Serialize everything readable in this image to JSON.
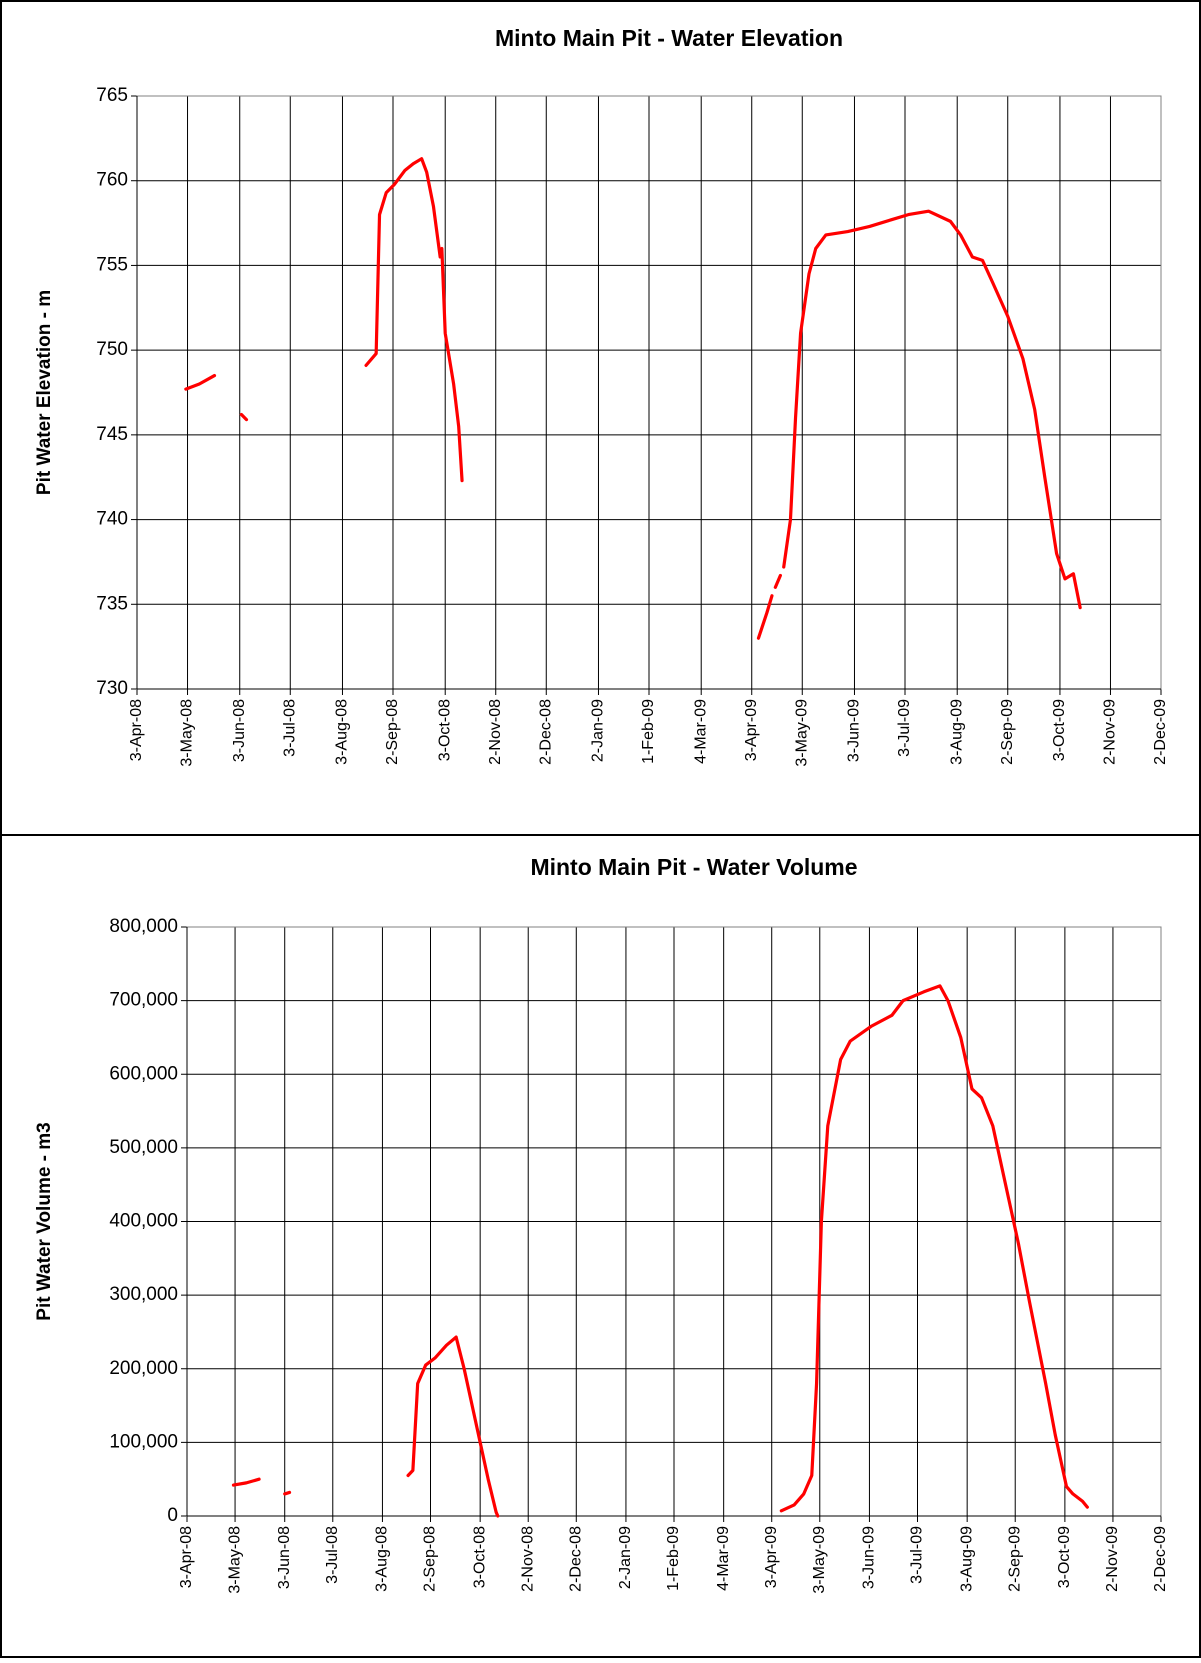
{
  "chart_data": [
    {
      "type": "line",
      "title": "Minto Main Pit - Water Elevation",
      "y_label": "Pit Water Elevation - m",
      "xlim": [
        "2008-04-03",
        "2009-12-02"
      ],
      "xticks": [
        {
          "value": "2008-04-03",
          "label": "3-Apr-08"
        },
        {
          "value": "2008-05-03",
          "label": "3-May-08"
        },
        {
          "value": "2008-06-03",
          "label": "3-Jun-08"
        },
        {
          "value": "2008-07-03",
          "label": "3-Jul-08"
        },
        {
          "value": "2008-08-03",
          "label": "3-Aug-08"
        },
        {
          "value": "2008-09-02",
          "label": "2-Sep-08"
        },
        {
          "value": "2008-10-03",
          "label": "3-Oct-08"
        },
        {
          "value": "2008-11-02",
          "label": "2-Nov-08"
        },
        {
          "value": "2008-12-02",
          "label": "2-Dec-08"
        },
        {
          "value": "2009-01-02",
          "label": "2-Jan-09"
        },
        {
          "value": "2009-02-01",
          "label": "1-Feb-09"
        },
        {
          "value": "2009-03-04",
          "label": "4-Mar-09"
        },
        {
          "value": "2009-04-03",
          "label": "3-Apr-09"
        },
        {
          "value": "2009-05-03",
          "label": "3-May-09"
        },
        {
          "value": "2009-06-03",
          "label": "3-Jun-09"
        },
        {
          "value": "2009-07-03",
          "label": "3-Jul-09"
        },
        {
          "value": "2009-08-03",
          "label": "3-Aug-09"
        },
        {
          "value": "2009-09-02",
          "label": "2-Sep-09"
        },
        {
          "value": "2009-10-03",
          "label": "3-Oct-09"
        },
        {
          "value": "2009-11-02",
          "label": "2-Nov-09"
        },
        {
          "value": "2009-12-02",
          "label": "2-Dec-09"
        }
      ],
      "ylim": [
        730,
        765
      ],
      "yticks": [
        730,
        735,
        740,
        745,
        750,
        755,
        760,
        765
      ],
      "grid": true,
      "series": [
        {
          "color": "#ff0000",
          "x": [
            "2008-05-02",
            "2008-05-10",
            "2008-05-19",
            null,
            "2008-06-04",
            "2008-06-07",
            null,
            "2008-08-17",
            "2008-08-23",
            "2008-08-25",
            "2008-08-29",
            "2008-09-03",
            "2008-09-09",
            "2008-09-14",
            "2008-09-19",
            "2008-09-22",
            "2008-09-26",
            "2008-09-30",
            "2008-10-01",
            "2008-10-03",
            "2008-10-08",
            "2008-10-11",
            "2008-10-13",
            null,
            "2009-04-07",
            "2009-04-12",
            "2009-04-15",
            null,
            "2009-04-17",
            "2009-04-20",
            null,
            "2009-04-22",
            "2009-04-26",
            "2009-04-29",
            "2009-05-02",
            "2009-05-07",
            "2009-05-11",
            "2009-05-17",
            "2009-05-30",
            "2009-06-12",
            "2009-06-25",
            "2009-07-05",
            "2009-07-17",
            "2009-07-30",
            "2009-08-05",
            "2009-08-12",
            "2009-08-18",
            "2009-08-24",
            "2009-09-02",
            "2009-09-11",
            "2009-09-18",
            "2009-09-24",
            "2009-10-01",
            "2009-10-06",
            "2009-10-11",
            "2009-10-15"
          ],
          "values": [
            747.7,
            748.0,
            748.5,
            null,
            746.2,
            745.9,
            null,
            749.1,
            749.8,
            758.0,
            759.3,
            759.8,
            760.6,
            761.0,
            761.3,
            760.5,
            758.5,
            755.5,
            756.0,
            751.0,
            748.0,
            745.5,
            742.3,
            null,
            733.0,
            734.5,
            735.5,
            null,
            736.0,
            736.7,
            null,
            737.2,
            740.0,
            746.0,
            751.0,
            754.5,
            756.0,
            756.8,
            757.0,
            757.3,
            757.7,
            758.0,
            758.2,
            757.6,
            756.8,
            755.5,
            755.3,
            754.0,
            752.0,
            749.5,
            746.5,
            742.5,
            738.0,
            736.5,
            736.8,
            734.8
          ]
        }
      ]
    },
    {
      "type": "line",
      "title": "Minto Main Pit - Water Volume",
      "y_label": "Pit Water Volume - m3",
      "xlim": [
        "2008-04-03",
        "2009-12-02"
      ],
      "xticks": [
        {
          "value": "2008-04-03",
          "label": "3-Apr-08"
        },
        {
          "value": "2008-05-03",
          "label": "3-May-08"
        },
        {
          "value": "2008-06-03",
          "label": "3-Jun-08"
        },
        {
          "value": "2008-07-03",
          "label": "3-Jul-08"
        },
        {
          "value": "2008-08-03",
          "label": "3-Aug-08"
        },
        {
          "value": "2008-09-02",
          "label": "2-Sep-08"
        },
        {
          "value": "2008-10-03",
          "label": "3-Oct-08"
        },
        {
          "value": "2008-11-02",
          "label": "2-Nov-08"
        },
        {
          "value": "2008-12-02",
          "label": "2-Dec-08"
        },
        {
          "value": "2009-01-02",
          "label": "2-Jan-09"
        },
        {
          "value": "2009-02-01",
          "label": "1-Feb-09"
        },
        {
          "value": "2009-03-04",
          "label": "4-Mar-09"
        },
        {
          "value": "2009-04-03",
          "label": "3-Apr-09"
        },
        {
          "value": "2009-05-03",
          "label": "3-May-09"
        },
        {
          "value": "2009-06-03",
          "label": "3-Jun-09"
        },
        {
          "value": "2009-07-03",
          "label": "3-Jul-09"
        },
        {
          "value": "2009-08-03",
          "label": "3-Aug-09"
        },
        {
          "value": "2009-09-02",
          "label": "2-Sep-09"
        },
        {
          "value": "2009-10-03",
          "label": "3-Oct-09"
        },
        {
          "value": "2009-11-02",
          "label": "2-Nov-09"
        },
        {
          "value": "2009-12-02",
          "label": "2-Dec-09"
        }
      ],
      "ylim": [
        0,
        800000
      ],
      "yticks": [
        0,
        {
          "value": 100000,
          "label": "100,000"
        },
        {
          "value": 200000,
          "label": "200,000"
        },
        {
          "value": 300000,
          "label": "300,000"
        },
        {
          "value": 400000,
          "label": "400,000"
        },
        {
          "value": 500000,
          "label": "500,000"
        },
        {
          "value": 600000,
          "label": "600,000"
        },
        {
          "value": 700000,
          "label": "700,000"
        },
        {
          "value": 800000,
          "label": "800,000"
        }
      ],
      "grid": true,
      "series": [
        {
          "color": "#ff0000",
          "x": [
            "2008-05-02",
            "2008-05-10",
            "2008-05-18",
            null,
            "2008-06-03",
            "2008-06-06",
            null,
            "2008-08-19",
            "2008-08-22",
            "2008-08-25",
            "2008-08-30",
            "2008-09-05",
            "2008-09-12",
            "2008-09-18",
            "2008-09-23",
            "2008-09-28",
            "2008-10-03",
            "2008-10-08",
            "2008-10-13",
            "2008-10-14",
            null,
            "2009-04-09",
            "2009-04-17",
            "2009-04-23",
            "2009-04-28",
            "2009-05-01",
            "2009-05-04",
            "2009-05-08",
            "2009-05-16",
            "2009-05-22",
            "2009-06-04",
            "2009-06-17",
            "2009-06-24",
            "2009-07-07",
            "2009-07-17",
            "2009-07-22",
            "2009-07-30",
            "2009-08-06",
            "2009-08-12",
            "2009-08-19",
            "2009-08-29",
            "2009-09-04",
            "2009-09-11",
            "2009-09-21",
            "2009-09-27",
            "2009-10-04",
            "2009-10-08",
            "2009-10-14",
            "2009-10-17"
          ],
          "values": [
            42000,
            45000,
            50000,
            null,
            30000,
            32000,
            null,
            55000,
            62000,
            180000,
            205000,
            215000,
            232000,
            243000,
            200000,
            150000,
            100000,
            50000,
            5000,
            0,
            null,
            7000,
            15000,
            30000,
            55000,
            180000,
            400000,
            530000,
            620000,
            645000,
            665000,
            680000,
            700000,
            712000,
            720000,
            700000,
            650000,
            580000,
            568000,
            530000,
            430000,
            370000,
            290000,
            180000,
            110000,
            40000,
            30000,
            20000,
            12000
          ]
        }
      ]
    }
  ]
}
